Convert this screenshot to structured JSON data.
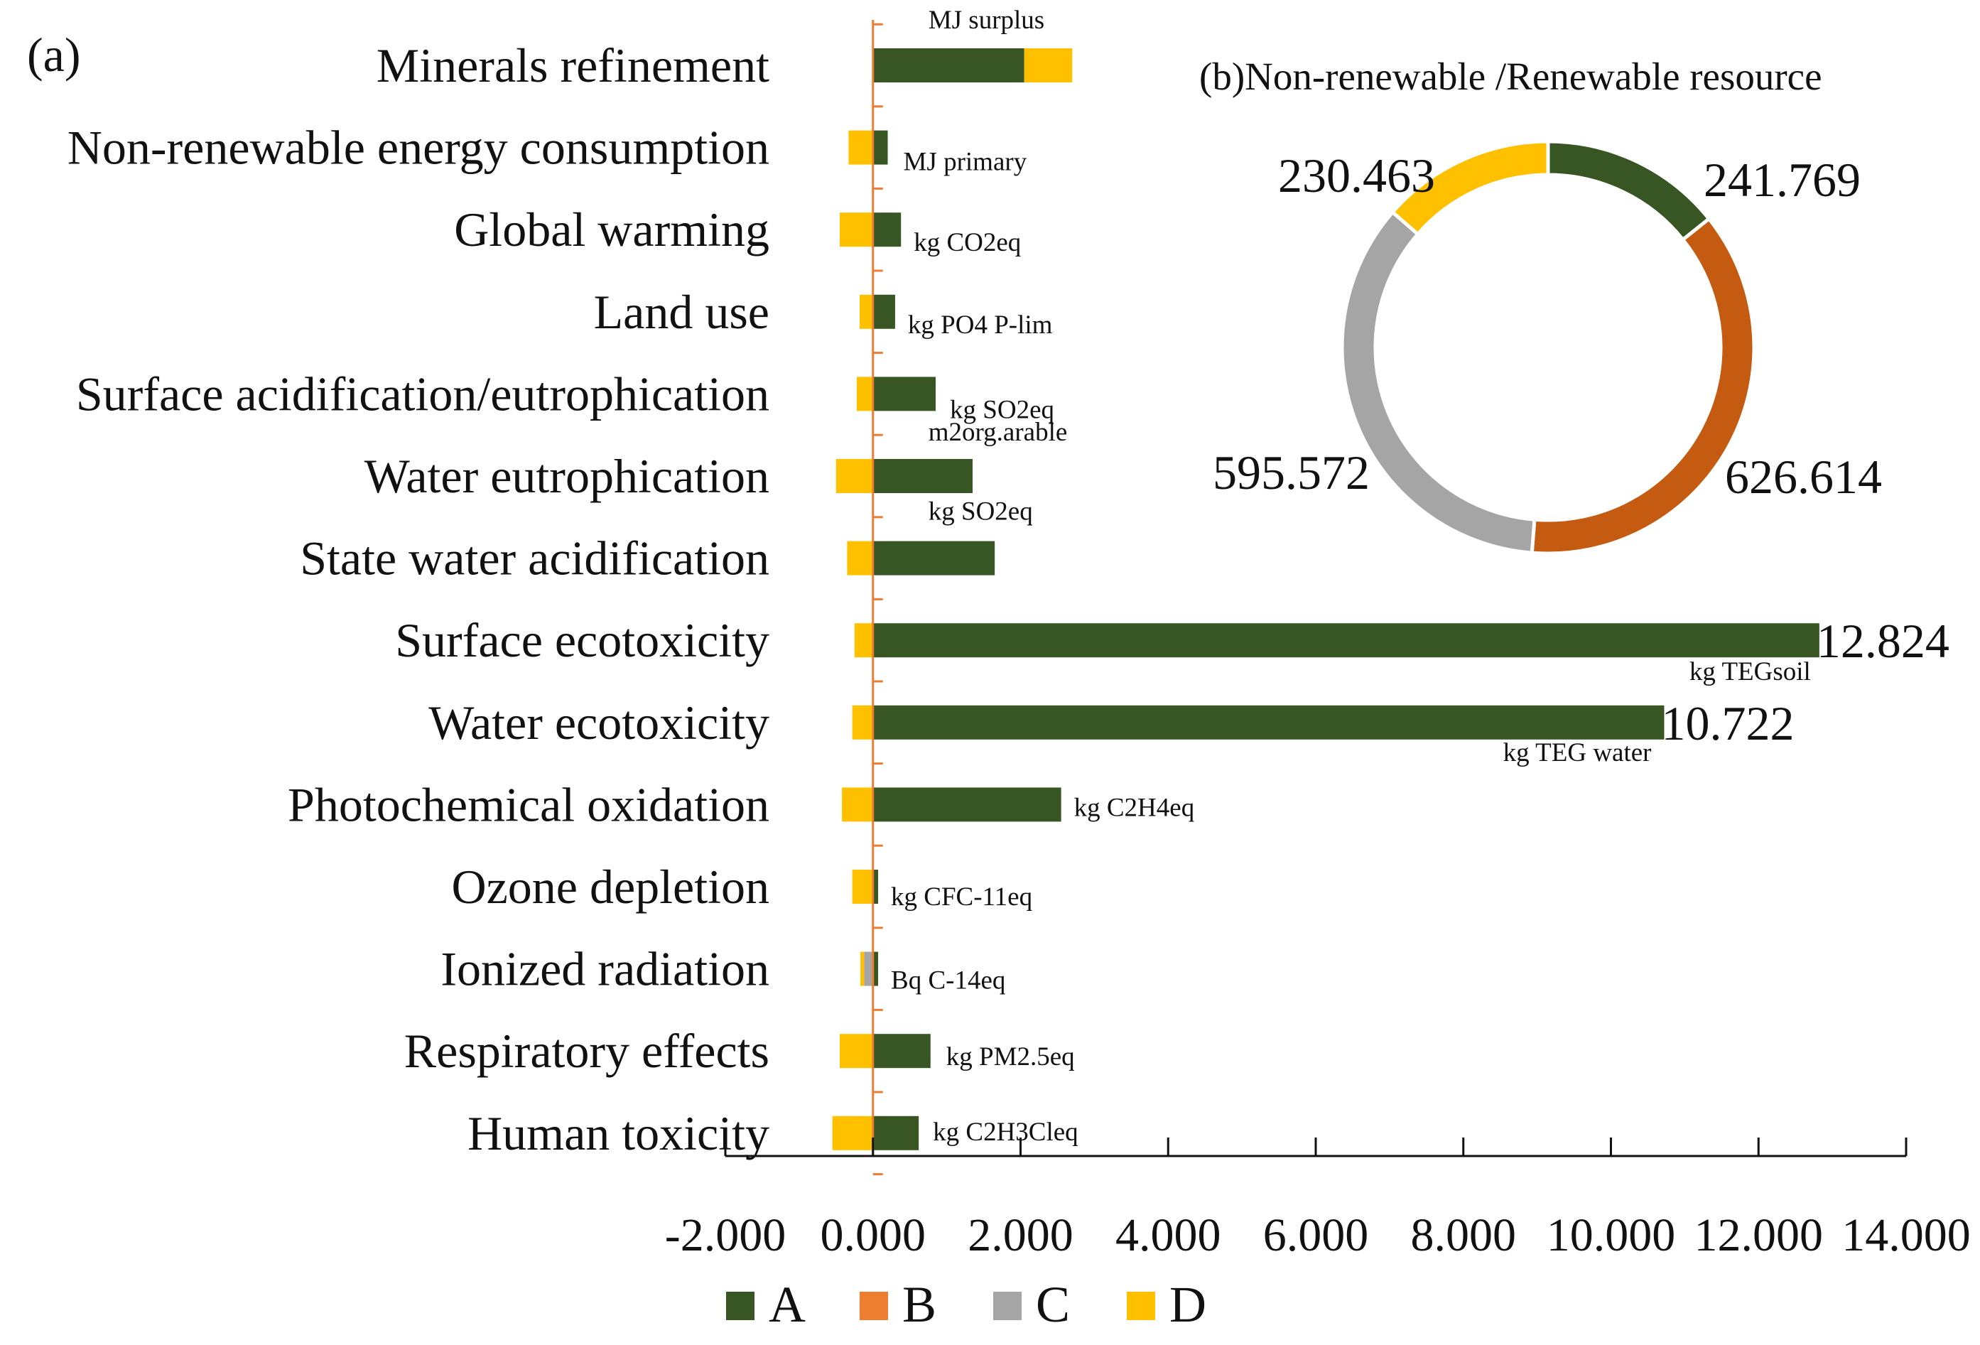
{
  "chart_data": [
    {
      "type": "bar",
      "orientation": "horizontal",
      "stacked": true,
      "panel_label": "(a)",
      "categories": [
        "Minerals refinement",
        "Non-renewable energy consumption",
        "Global warming",
        "Land use",
        "Surface acidification/eutrophication",
        "Water eutrophication",
        "State water acidification",
        "Surface ecotoxicity",
        "Water ecotoxicity",
        "Photochemical oxidation",
        "Ozone depletion",
        "Ionized radiation",
        "Respiratory effects",
        "Human toxicity"
      ],
      "units": [
        "MJ surplus",
        "MJ primary",
        "kg CO2eq",
        "kg PO4 P-lim",
        "kg SO2eq",
        "m2org.arable",
        "kg SO2eq",
        "kg TEGsoil",
        "kg TEG water",
        "kg C2H4eq",
        "kg CFC-11eq",
        "Bq C-14eq",
        "kg PM2.5eq",
        "kg C2H3Cleq"
      ],
      "series": [
        {
          "name": "A",
          "color": "#375623",
          "values": [
            2.05,
            0.2,
            0.38,
            0.3,
            0.85,
            1.35,
            1.65,
            12.824,
            10.722,
            2.55,
            0.07,
            0.07,
            0.78,
            0.62
          ]
        },
        {
          "name": "B",
          "color": "#ED7D31",
          "values": [
            0,
            0,
            0,
            0,
            0,
            0,
            0,
            0,
            0,
            0,
            0,
            0,
            0,
            0
          ]
        },
        {
          "name": "C",
          "color": "#A5A5A5",
          "values": [
            0,
            0,
            0,
            0,
            0,
            0,
            0,
            0,
            0,
            0,
            0,
            -0.12,
            0,
            0
          ]
        },
        {
          "name": "D",
          "color": "#FFC000",
          "values": [
            0.65,
            -0.33,
            -0.45,
            -0.18,
            -0.22,
            -0.5,
            -0.35,
            -0.25,
            -0.28,
            -0.42,
            -0.28,
            -0.05,
            -0.45,
            -0.55
          ]
        }
      ],
      "value_labels": [
        {
          "category": "Surface ecotoxicity",
          "text": "12.824"
        },
        {
          "category": "Water ecotoxicity",
          "text": "10.722"
        }
      ],
      "x_ticks": [
        "-2.000",
        "0.000",
        "2.000",
        "4.000",
        "6.000",
        "8.000",
        "10.000",
        "12.000",
        "14.000"
      ],
      "xlim": [
        -2,
        14
      ],
      "legend": {
        "position": "bottom",
        "entries": [
          "A",
          "B",
          "C",
          "D"
        ]
      }
    },
    {
      "type": "pie",
      "donut": true,
      "title": "(b)Non-renewable /Renewable resource",
      "labels": [
        "A",
        "B",
        "C",
        "D"
      ],
      "values": [
        241.769,
        626.614,
        595.572,
        230.463
      ],
      "value_labels": [
        "241.769",
        "626.614",
        "595.572",
        "230.463"
      ],
      "colors": [
        "#375623",
        "#C55A11",
        "#A5A5A5",
        "#FFC000"
      ]
    }
  ]
}
